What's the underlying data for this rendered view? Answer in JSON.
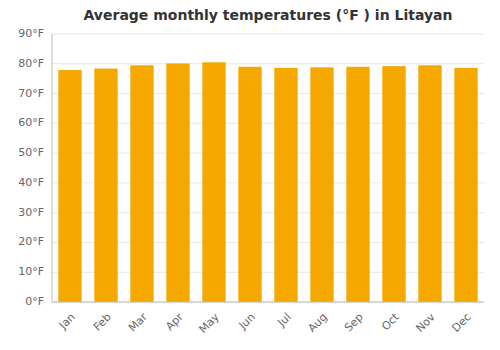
{
  "chart_data": {
    "type": "bar",
    "title": "Average monthly temperatures (°F ) in Litayan",
    "categories": [
      "Jan",
      "Feb",
      "Mar",
      "Apr",
      "May",
      "Jun",
      "Jul",
      "Aug",
      "Sep",
      "Oct",
      "Nov",
      "Dec"
    ],
    "values": [
      77.9,
      78.4,
      79.5,
      80.1,
      80.5,
      79.0,
      78.6,
      78.8,
      79.0,
      79.2,
      79.5,
      78.6
    ],
    "color": "#F5A800",
    "ylim": [
      0,
      90
    ],
    "yticks": [
      {
        "value": 0,
        "label": "0°F"
      },
      {
        "value": 10,
        "label": "10°F"
      },
      {
        "value": 20,
        "label": "20°F"
      },
      {
        "value": 30,
        "label": "30°F"
      },
      {
        "value": 40,
        "label": "40°F"
      },
      {
        "value": 50,
        "label": "50°F"
      },
      {
        "value": 60,
        "label": "60°F"
      },
      {
        "value": 70,
        "label": "70°F"
      },
      {
        "value": 80,
        "label": "80°F"
      },
      {
        "value": 90,
        "label": "90°F"
      }
    ],
    "grid": true
  }
}
